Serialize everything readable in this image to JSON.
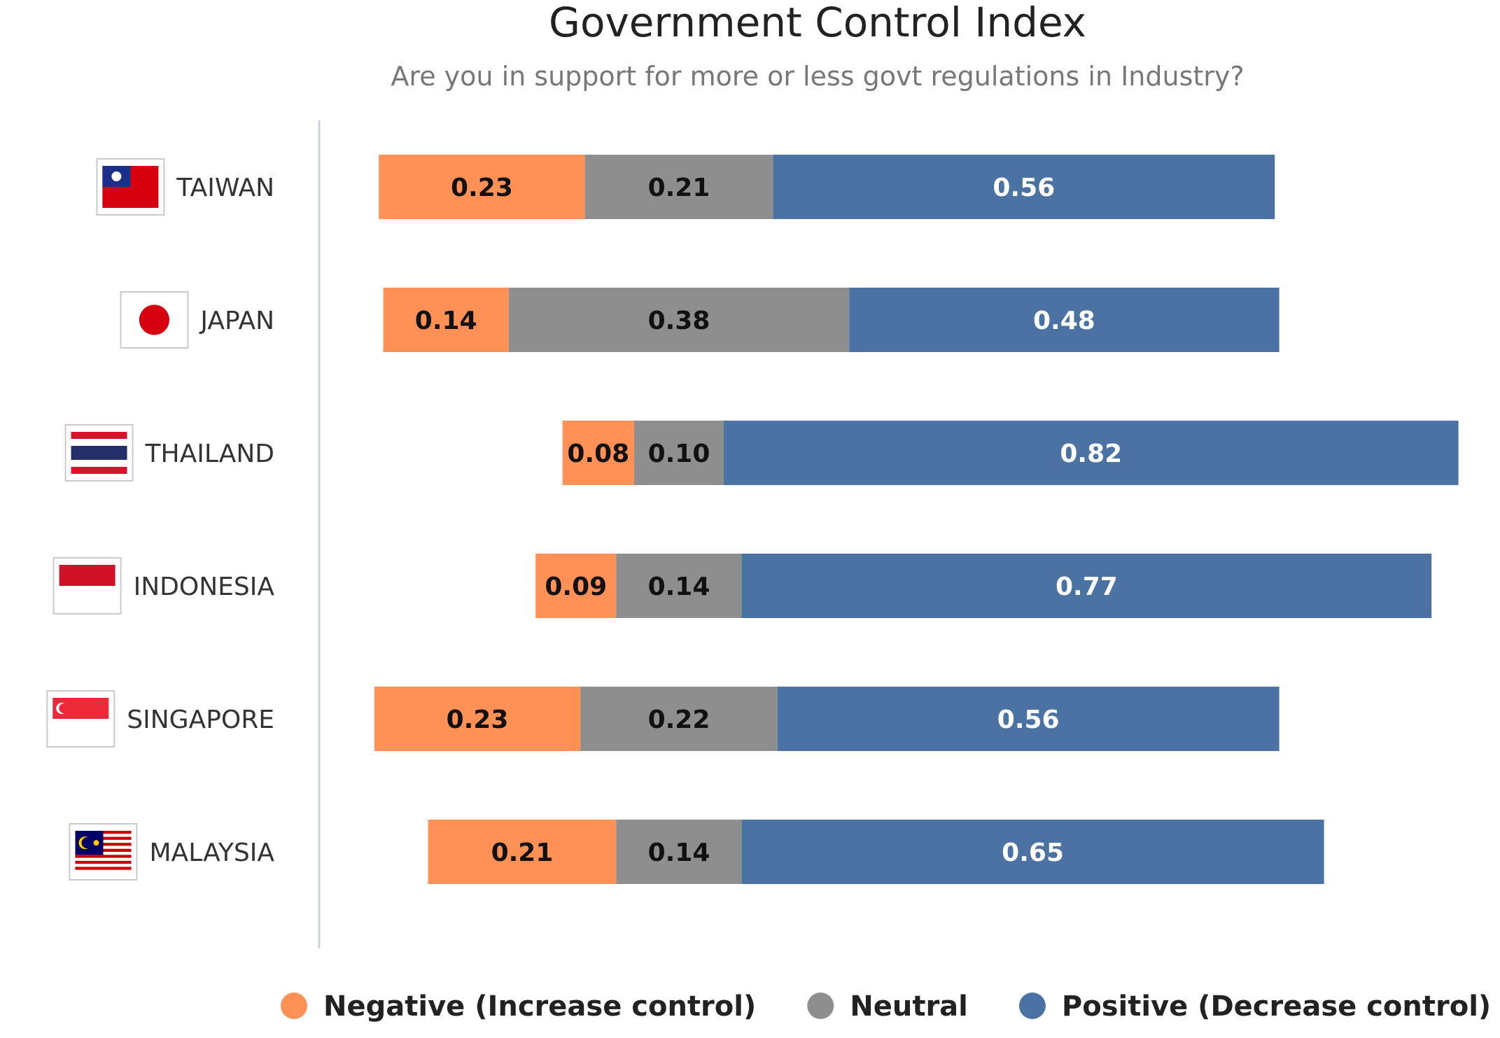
{
  "chart_data": {
    "type": "bar",
    "orientation": "horizontal",
    "stacked": true,
    "title": "Government Control Index",
    "subtitle": "Are you in support for more or less govt regulations in Industry?",
    "categories": [
      "TAIWAN",
      "JAPAN",
      "THAILAND",
      "INDONESIA",
      "SINGAPORE",
      "MALAYSIA"
    ],
    "series": [
      {
        "name": "Negative (Increase control)",
        "color": "#FF9157",
        "label_color": "#111111",
        "values": [
          0.23,
          0.14,
          0.08,
          0.09,
          0.23,
          0.21
        ],
        "labels": [
          "0.23",
          "0.14",
          "0.08",
          "0.09",
          "0.23",
          "0.21"
        ]
      },
      {
        "name": "Neutral",
        "color": "#8E8E8E",
        "label_color": "#111111",
        "values": [
          0.21,
          0.38,
          0.1,
          0.14,
          0.22,
          0.14
        ],
        "labels": [
          "0.21",
          "0.38",
          "0.10",
          "0.14",
          "0.22",
          "0.14"
        ]
      },
      {
        "name": "Positive (Decrease control)",
        "color": "#4A72A2",
        "label_color": "#FFFFFF",
        "values": [
          0.56,
          0.48,
          0.82,
          0.77,
          0.56,
          0.65
        ],
        "labels": [
          "0.56",
          "0.48",
          "0.82",
          "0.77",
          "0.56",
          "0.65"
        ]
      }
    ],
    "bar_alignment": "centered on neutral segment",
    "flags": [
      "taiwan-flag-icon",
      "japan-flag-icon",
      "thailand-flag-icon",
      "indonesia-flag-icon",
      "singapore-flag-icon",
      "malaysia-flag-icon"
    ],
    "legend": {
      "position": "bottom"
    },
    "grid": false
  }
}
